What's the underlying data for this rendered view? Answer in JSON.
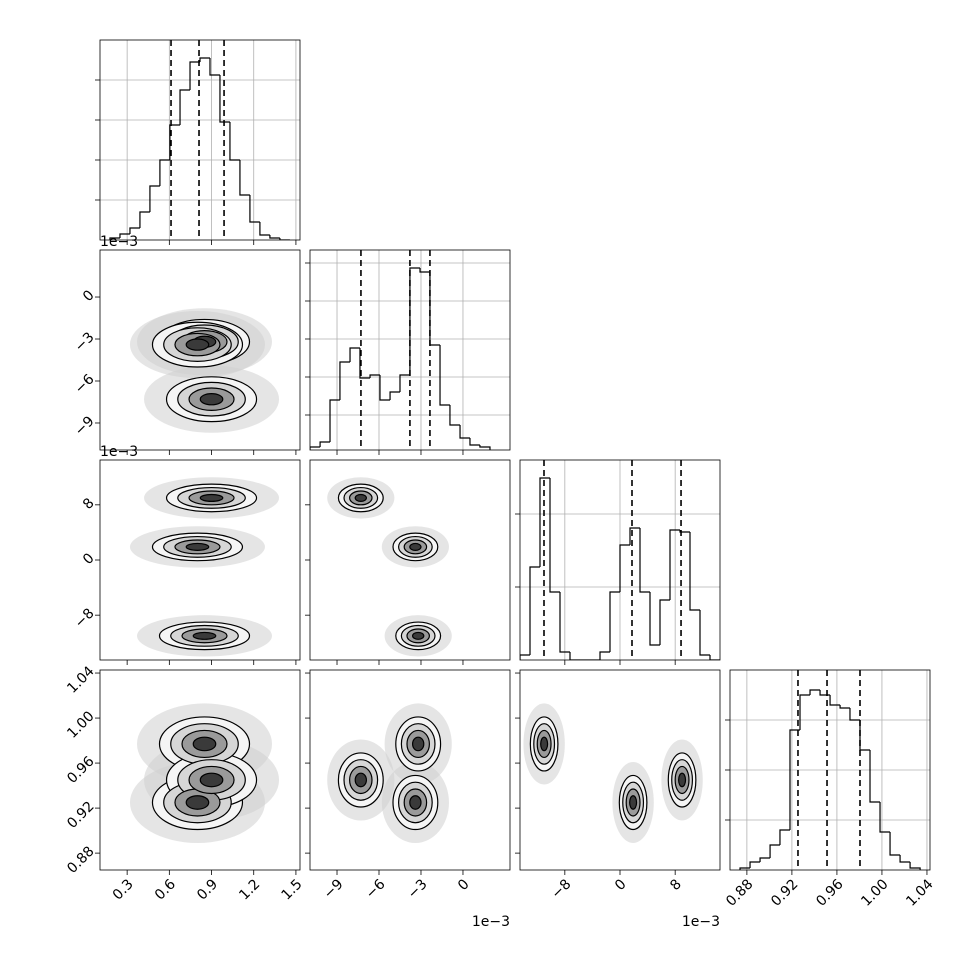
{
  "chart_data": {
    "type": "corner",
    "grid_diagonal": true,
    "parameters": [
      {
        "lim": [
          0.107,
          1.529
        ],
        "ticks": [
          0.3,
          0.6,
          0.9,
          1.2,
          1.5
        ]
      },
      {
        "lim": [
          -10.93,
          3.36
        ],
        "offset_label": "1e−3",
        "ticks": [
          {
            "value": -9,
            "label": "−9"
          },
          {
            "value": -6,
            "label": "−6"
          },
          {
            "value": -3,
            "label": "−3"
          },
          0
        ]
      },
      {
        "lim": [
          -14.5,
          14.5
        ],
        "offset_label": "1e−3",
        "ticks": [
          {
            "value": -8,
            "label": "−8"
          },
          0,
          8
        ]
      },
      {
        "lim": [
          0.865,
          1.0427
        ],
        "ticks": [
          0.88,
          0.92,
          0.96,
          {
            "value": 1.0,
            "label": "1.00"
          },
          1.04
        ]
      }
    ],
    "histograms": [
      {
        "bins": [
          0.178,
          0.249,
          0.32,
          0.391,
          0.462,
          0.533,
          0.604,
          0.676,
          0.747,
          0.818,
          0.889,
          0.96,
          1.031,
          1.102,
          1.173,
          1.244,
          1.315,
          1.386,
          1.457
        ],
        "counts": [
          2,
          6,
          12,
          28,
          54,
          80,
          115,
          150,
          178,
          182,
          165,
          118,
          80,
          45,
          18,
          5,
          2,
          0
        ],
        "ylim": [
          0,
          200
        ],
        "yticks": [
          40,
          80,
          120,
          160
        ],
        "quantiles": [
          0.612,
          0.811,
          0.989
        ]
      },
      {
        "bins": [
          -10.93,
          -10.21,
          -9.5,
          -8.79,
          -8.07,
          -7.36,
          -6.64,
          -5.93,
          -5.21,
          -4.5,
          -3.79,
          -3.07,
          -2.36,
          -1.64,
          -0.93,
          -0.21,
          0.5,
          1.21,
          1.93
        ],
        "counts": [
          3,
          8,
          50,
          88,
          102,
          72,
          75,
          50,
          58,
          75,
          182,
          178,
          105,
          45,
          25,
          12,
          5,
          3
        ],
        "ylim": [
          0,
          200
        ],
        "yticks": [
          35,
          73,
          111,
          149,
          187
        ],
        "quantiles": [
          -7.29,
          -3.79,
          -2.36
        ]
      },
      {
        "bins": [
          -14.5,
          -13.05,
          -11.6,
          -10.15,
          -8.7,
          -7.25,
          -5.8,
          -4.35,
          -2.9,
          -1.45,
          0,
          1.45,
          2.9,
          4.35,
          5.8,
          7.25,
          8.7,
          10.15,
          11.6,
          13.05,
          14.5
        ],
        "counts": [
          5,
          93,
          182,
          68,
          8,
          0,
          0,
          0,
          8,
          68,
          115,
          132,
          68,
          15,
          60,
          130,
          128,
          50,
          5,
          0
        ],
        "ylim": [
          0,
          200
        ],
        "yticks": [
          73,
          146
        ],
        "quantiles": [
          -11.02,
          1.74,
          8.85
        ]
      },
      {
        "bins": [
          0.8739,
          0.8828,
          0.8917,
          0.9006,
          0.9094,
          0.9183,
          0.9272,
          0.9361,
          0.945,
          0.9539,
          0.9628,
          0.9716,
          0.9805,
          0.9894,
          0.9983,
          1.0072,
          1.0161,
          1.025,
          1.0339
        ],
        "counts": [
          2,
          8,
          12,
          25,
          40,
          140,
          175,
          180,
          175,
          165,
          162,
          150,
          120,
          68,
          38,
          15,
          8,
          2
        ],
        "ylim": [
          0,
          200
        ],
        "yticks": [
          50,
          100,
          150
        ],
        "quantiles": [
          0.9254,
          0.9512,
          0.9805
        ]
      }
    ],
    "components": [
      {
        "mean": [
          0.85,
          -3.2,
          -11.0,
          0.977
        ],
        "std": [
          0.16,
          0.8,
          1.0,
          0.012
        ]
      },
      {
        "mean": [
          0.8,
          -3.4,
          1.9,
          0.925
        ],
        "std": [
          0.16,
          0.8,
          1.0,
          0.012
        ]
      },
      {
        "mean": [
          0.9,
          -7.3,
          9.0,
          0.945
        ],
        "std": [
          0.16,
          0.8,
          1.0,
          0.012
        ]
      }
    ]
  }
}
